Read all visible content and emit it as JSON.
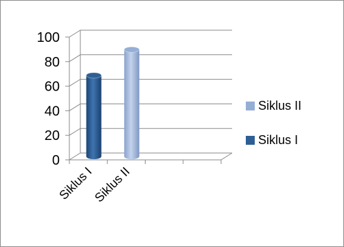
{
  "chart_data": {
    "type": "bar",
    "style": "3d-cylinder",
    "categories": [
      "Siklus I",
      "Siklus II"
    ],
    "series": [
      {
        "name": "Siklus I",
        "color": "#2e5f94",
        "values": [
          66,
          null
        ]
      },
      {
        "name": "Siklus II",
        "color": "#95aed6",
        "values": [
          null,
          87
        ]
      }
    ],
    "yticks": [
      "0",
      "20",
      "40",
      "60",
      "80",
      "100"
    ],
    "ylim": [
      0,
      100
    ],
    "grid": true,
    "legend_position": "right",
    "legend_order": [
      "Siklus II",
      "Siklus I"
    ]
  }
}
